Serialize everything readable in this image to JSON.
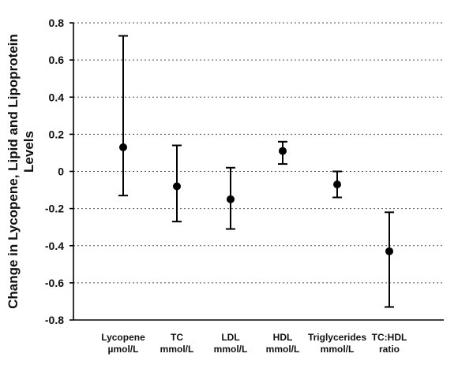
{
  "chart_data": {
    "type": "scatter",
    "title": "",
    "xlabel": "",
    "ylabel": "Change in Lycopene, Lipid and Lipoprotein Levels",
    "ylim": [
      -0.8,
      0.8
    ],
    "yticks": [
      0.8,
      0.6,
      0.4,
      0.2,
      0,
      -0.2,
      -0.4,
      -0.6,
      -0.8
    ],
    "ytick_labels": [
      "0.8",
      "0.6",
      "0.4",
      "0.2",
      "0",
      "-0.2",
      "-0.4",
      "-0.6",
      "-0.8"
    ],
    "grid": true,
    "categories": [
      {
        "line1": "Lycopene",
        "line2": "µmol/L"
      },
      {
        "line1": "TC",
        "line2": "mmol/L"
      },
      {
        "line1": "LDL",
        "line2": "mmol/L"
      },
      {
        "line1": "HDL",
        "line2": "mmol/L"
      },
      {
        "line1": "Triglycerides",
        "line2": "mmol/L"
      },
      {
        "line1": "TC:HDL",
        "line2": "ratio"
      }
    ],
    "values": [
      0.13,
      -0.08,
      -0.15,
      0.11,
      -0.07,
      -0.43
    ],
    "error_low": [
      -0.13,
      -0.27,
      -0.31,
      0.04,
      -0.14,
      -0.73
    ],
    "error_high": [
      0.73,
      0.14,
      0.02,
      0.16,
      0.0,
      -0.22
    ]
  }
}
